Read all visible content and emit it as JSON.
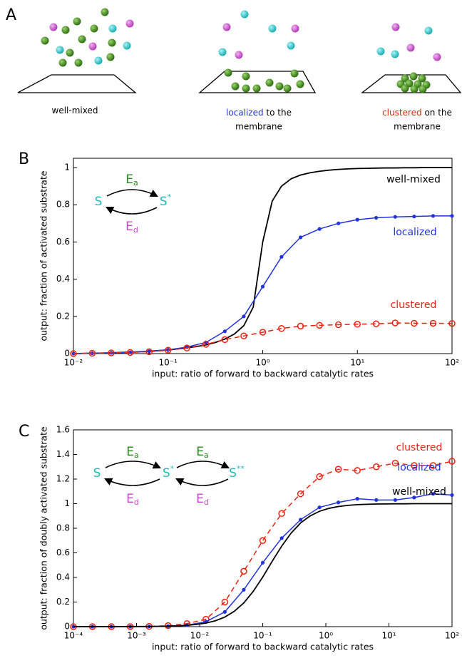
{
  "panel_labels": [
    "A",
    "B",
    "C"
  ],
  "panel_a": {
    "captions": [
      {
        "highlight": "well-mixed",
        "highlight_color": "#000000"
      },
      {
        "highlight": "localized",
        "highlight_color": "#2233dd",
        "rest": "to the",
        "line2": "membrane"
      },
      {
        "highlight": "clustered",
        "highlight_color": "#ee2211",
        "rest": "on the",
        "line2": "membrane"
      }
    ]
  },
  "chart_data": [
    {
      "type": "line",
      "xscale": "log",
      "xlabel": "input: ratio of forward to backward catalytic rates",
      "ylabel": "output: fraction of activated substrate",
      "xlim": [
        0.01,
        100
      ],
      "xticks": [
        {
          "value": 0.01,
          "label": "10⁻²"
        },
        {
          "value": 0.1,
          "label": "10⁻¹"
        },
        {
          "value": 1,
          "label": "10⁰"
        },
        {
          "value": 10,
          "label": "10¹"
        },
        {
          "value": 100,
          "label": "10²"
        }
      ],
      "ylim": [
        0,
        1.05
      ],
      "yticks": [
        0,
        0.2,
        0.4,
        0.6,
        0.8,
        1
      ],
      "scheme": {
        "species": [
          [
            "S"
          ],
          [
            "S",
            "*"
          ]
        ],
        "forward": [
          [
            "E",
            "a"
          ]
        ],
        "backward": [
          [
            "E",
            "d"
          ]
        ],
        "species_color": "#22bbbb",
        "forward_color": "#2a8a1e",
        "backward_color": "#cc44cc"
      },
      "series": [
        {
          "name": "well-mixed",
          "color": "#000000",
          "marker": "none",
          "line_style": "solid",
          "x": [
            0.01,
            0.0126,
            0.0158,
            0.02,
            0.0251,
            0.0316,
            0.0398,
            0.0501,
            0.0631,
            0.0794,
            0.1,
            0.126,
            0.158,
            0.2,
            0.251,
            0.316,
            0.398,
            0.501,
            0.631,
            0.794,
            1,
            1.26,
            1.58,
            2,
            2.51,
            3.16,
            3.98,
            5.01,
            6.31,
            7.94,
            10,
            12.6,
            15.8,
            20,
            25.1,
            31.6,
            39.8,
            50.1,
            63.1,
            79.4,
            100
          ],
          "values": [
            0,
            0.001,
            0.002,
            0.003,
            0.004,
            0.006,
            0.008,
            0.01,
            0.013,
            0.016,
            0.02,
            0.025,
            0.031,
            0.038,
            0.047,
            0.06,
            0.078,
            0.105,
            0.15,
            0.25,
            0.6,
            0.82,
            0.9,
            0.94,
            0.96,
            0.972,
            0.98,
            0.986,
            0.99,
            0.993,
            0.995,
            0.996,
            0.997,
            0.998,
            0.998,
            0.999,
            0.999,
            1,
            1,
            1,
            1
          ]
        },
        {
          "name": "localized",
          "color": "#2233dd",
          "marker": "dot",
          "line_style": "solid",
          "x": [
            0.01,
            0.0158,
            0.0251,
            0.0398,
            0.0631,
            0.1,
            0.158,
            0.251,
            0.398,
            0.631,
            1,
            1.58,
            2.51,
            3.98,
            6.31,
            10,
            15.8,
            25.1,
            39.8,
            63.1,
            100
          ],
          "values": [
            0,
            0.002,
            0.004,
            0.007,
            0.012,
            0.02,
            0.035,
            0.06,
            0.12,
            0.2,
            0.36,
            0.52,
            0.625,
            0.67,
            0.7,
            0.72,
            0.73,
            0.735,
            0.737,
            0.74,
            0.74
          ]
        },
        {
          "name": "clustered",
          "color": "#ee2211",
          "marker": "circle",
          "line_style": "dashed",
          "x": [
            0.01,
            0.0158,
            0.0251,
            0.0398,
            0.0631,
            0.1,
            0.158,
            0.251,
            0.398,
            0.631,
            1,
            1.58,
            2.51,
            3.98,
            6.31,
            10,
            15.8,
            25.1,
            39.8,
            63.1,
            100
          ],
          "values": [
            0,
            0.002,
            0.004,
            0.006,
            0.01,
            0.018,
            0.03,
            0.05,
            0.075,
            0.095,
            0.115,
            0.135,
            0.148,
            0.152,
            0.155,
            0.158,
            0.16,
            0.165,
            0.163,
            0.163,
            0.162
          ]
        }
      ]
    },
    {
      "type": "line",
      "xscale": "log",
      "xlabel": "input: ratio of forward to backward catalytic rates",
      "ylabel": "output: fraction of doubly activated substrate",
      "xlim": [
        0.0001,
        100
      ],
      "xticks": [
        {
          "value": 0.0001,
          "label": "10⁻⁴"
        },
        {
          "value": 0.001,
          "label": "10⁻³"
        },
        {
          "value": 0.01,
          "label": "10⁻²"
        },
        {
          "value": 0.1,
          "label": "10⁻¹"
        },
        {
          "value": 1,
          "label": "10⁰"
        },
        {
          "value": 10,
          "label": "10¹"
        },
        {
          "value": 100,
          "label": "10²"
        }
      ],
      "ylim": [
        0,
        1.6
      ],
      "yticks": [
        0,
        0.2,
        0.4,
        0.6,
        0.8,
        1,
        1.2,
        1.4,
        1.6
      ],
      "scheme": {
        "species": [
          [
            "S"
          ],
          [
            "S",
            "*"
          ],
          [
            "S",
            "**"
          ]
        ],
        "forward": [
          [
            "E",
            "a"
          ],
          [
            "E",
            "a"
          ]
        ],
        "backward": [
          [
            "E",
            "d"
          ],
          [
            "E",
            "d"
          ]
        ],
        "species_color": "#22bbbb",
        "forward_color": "#2a8a1e",
        "backward_color": "#cc44cc"
      },
      "series": [
        {
          "name": "clustered",
          "color": "#ee2211",
          "marker": "circle",
          "line_style": "dashed",
          "x": [
            0.0001,
            0.0002,
            0.0004,
            0.000794,
            0.00158,
            0.00316,
            0.00631,
            0.0126,
            0.0251,
            0.0501,
            0.1,
            0.2,
            0.398,
            0.794,
            1.58,
            3.16,
            6.31,
            12.6,
            25.1,
            50.1,
            100
          ],
          "values": [
            0,
            0,
            0,
            0,
            0.002,
            0.008,
            0.025,
            0.06,
            0.2,
            0.45,
            0.7,
            0.92,
            1.08,
            1.22,
            1.28,
            1.27,
            1.3,
            1.33,
            1.31,
            1.31,
            1.345
          ]
        },
        {
          "name": "localized",
          "color": "#2233dd",
          "marker": "dot",
          "line_style": "solid",
          "x": [
            0.0001,
            0.0002,
            0.0004,
            0.000794,
            0.00158,
            0.00316,
            0.00631,
            0.0126,
            0.0251,
            0.0501,
            0.1,
            0.2,
            0.398,
            0.794,
            1.58,
            3.16,
            6.31,
            12.6,
            25.1,
            50.1,
            100
          ],
          "values": [
            0,
            0,
            0,
            0,
            0.001,
            0.004,
            0.012,
            0.04,
            0.12,
            0.3,
            0.52,
            0.72,
            0.87,
            0.97,
            1.01,
            1.04,
            1.03,
            1.03,
            1.05,
            1.08,
            1.07
          ]
        },
        {
          "name": "well-mixed",
          "color": "#000000",
          "marker": "none",
          "line_style": "solid",
          "x": [
            0.0001,
            0.000141,
            0.0002,
            0.000282,
            0.000398,
            0.000562,
            0.000794,
            0.00112,
            0.00158,
            0.00224,
            0.00316,
            0.00447,
            0.00631,
            0.00891,
            0.0126,
            0.0178,
            0.0251,
            0.0355,
            0.0501,
            0.0708,
            0.1,
            0.141,
            0.2,
            0.282,
            0.398,
            0.562,
            0.794,
            1.12,
            1.58,
            2.24,
            3.16,
            4.47,
            6.31,
            8.91,
            12.6,
            17.8,
            25.1,
            35.5,
            50.1,
            70.8,
            100
          ],
          "values": [
            0,
            0,
            0,
            0,
            0,
            0,
            0.001,
            0.001,
            0.001,
            0.002,
            0.004,
            0.006,
            0.011,
            0.018,
            0.029,
            0.048,
            0.078,
            0.125,
            0.193,
            0.287,
            0.403,
            0.531,
            0.655,
            0.761,
            0.843,
            0.9,
            0.938,
            0.962,
            0.977,
            0.986,
            0.992,
            0.995,
            0.997,
            0.998,
            0.999,
            0.999,
            1,
            1,
            1,
            1,
            1
          ]
        }
      ]
    }
  ]
}
